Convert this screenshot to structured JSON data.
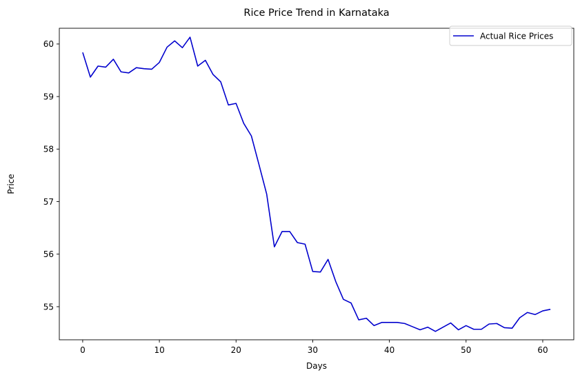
{
  "chart_data": {
    "type": "line",
    "title": "Rice Price Trend in Karnataka",
    "xlabel": "Days",
    "ylabel": "Price",
    "xlim": [
      -3.05,
      64.05
    ],
    "ylim": [
      54.37,
      60.3
    ],
    "xticks": [
      0,
      10,
      20,
      30,
      40,
      50,
      60
    ],
    "yticks": [
      55,
      56,
      57,
      58,
      59,
      60
    ],
    "grid": false,
    "legend_position": "top-right",
    "series": [
      {
        "name": "Actual Rice Prices",
        "color": "#0000cd",
        "x": [
          0,
          1,
          2,
          3,
          4,
          5,
          6,
          7,
          8,
          9,
          10,
          11,
          12,
          13,
          14,
          15,
          16,
          17,
          18,
          19,
          20,
          21,
          22,
          23,
          24,
          25,
          26,
          27,
          28,
          29,
          30,
          31,
          32,
          33,
          34,
          35,
          36,
          37,
          38,
          39,
          40,
          41,
          42,
          43,
          44,
          45,
          46,
          47,
          48,
          49,
          50,
          51,
          52,
          53,
          54,
          55,
          56,
          57,
          58,
          59,
          60,
          61
        ],
        "y": [
          59.84,
          59.37,
          59.58,
          59.56,
          59.71,
          59.47,
          59.45,
          59.55,
          59.53,
          59.52,
          59.65,
          59.94,
          60.06,
          59.93,
          60.13,
          59.58,
          59.69,
          59.42,
          59.28,
          58.84,
          58.87,
          58.49,
          58.25,
          57.7,
          57.14,
          56.14,
          56.43,
          56.43,
          56.22,
          56.19,
          55.67,
          55.66,
          55.9,
          55.48,
          55.14,
          55.07,
          54.75,
          54.78,
          54.64,
          54.7,
          54.7,
          54.7,
          54.68,
          54.62,
          54.56,
          54.61,
          54.53,
          54.61,
          54.69,
          54.56,
          54.64,
          54.57,
          54.57,
          54.67,
          54.68,
          54.6,
          54.59,
          54.79,
          54.89,
          54.85,
          54.92,
          54.95
        ]
      }
    ]
  }
}
